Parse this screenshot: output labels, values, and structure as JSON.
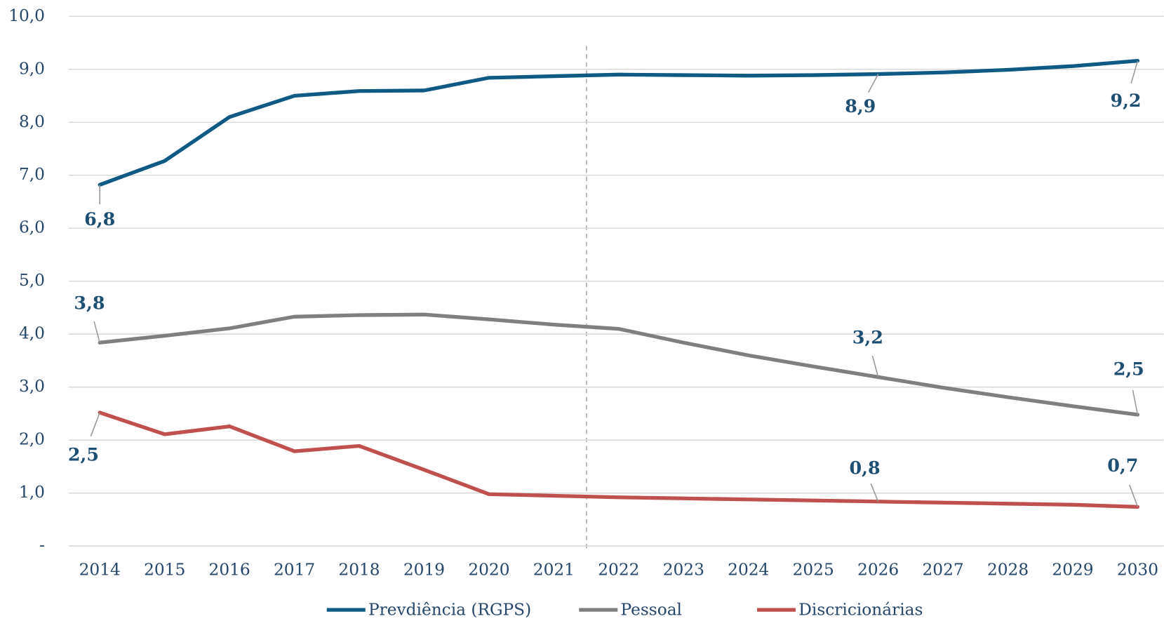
{
  "chart_data": {
    "type": "line",
    "categories": [
      "2014",
      "2015",
      "2016",
      "2017",
      "2018",
      "2019",
      "2020",
      "2021",
      "2022",
      "2023",
      "2024",
      "2025",
      "2026",
      "2027",
      "2028",
      "2029",
      "2030"
    ],
    "series": [
      {
        "name": "Prevdiência (RGPS)",
        "color": "#0e5a84",
        "values": [
          6.82,
          7.27,
          8.1,
          8.5,
          8.59,
          8.6,
          8.84,
          8.87,
          8.9,
          8.89,
          8.88,
          8.89,
          8.91,
          8.94,
          8.99,
          9.06,
          9.16
        ],
        "value_labels": [
          "6,8",
          null,
          null,
          null,
          null,
          null,
          null,
          null,
          null,
          null,
          null,
          null,
          "8,9",
          null,
          null,
          null,
          "9,2"
        ]
      },
      {
        "name": "Pessoal",
        "color": "#7f7f7f",
        "values": [
          3.84,
          3.97,
          4.11,
          4.33,
          4.36,
          4.37,
          4.28,
          4.18,
          4.1,
          3.84,
          3.6,
          3.39,
          3.19,
          2.99,
          2.81,
          2.64,
          2.48
        ],
        "value_labels": [
          "3,8",
          null,
          null,
          null,
          null,
          null,
          null,
          null,
          null,
          null,
          null,
          null,
          "3,2",
          null,
          null,
          null,
          "2,5"
        ]
      },
      {
        "name": "Discricionárias",
        "color": "#c0504d",
        "values": [
          2.52,
          2.11,
          2.26,
          1.79,
          1.89,
          1.44,
          0.98,
          0.95,
          0.92,
          0.9,
          0.88,
          0.86,
          0.84,
          0.82,
          0.8,
          0.78,
          0.74
        ],
        "value_labels": [
          "2,5",
          null,
          null,
          null,
          null,
          null,
          null,
          null,
          null,
          null,
          null,
          null,
          "0,8",
          null,
          null,
          null,
          "0,7"
        ]
      }
    ],
    "ylim": [
      0,
      10
    ],
    "yticks": [
      {
        "value": 0,
        "label": "-"
      },
      {
        "value": 1,
        "label": "1,0"
      },
      {
        "value": 2,
        "label": "2,0"
      },
      {
        "value": 3,
        "label": "3,0"
      },
      {
        "value": 4,
        "label": "4,0"
      },
      {
        "value": 5,
        "label": "5,0"
      },
      {
        "value": 6,
        "label": "6,0"
      },
      {
        "value": 7,
        "label": "7,0"
      },
      {
        "value": 8,
        "label": "8,0"
      },
      {
        "value": 9,
        "label": "9,0"
      },
      {
        "value": 10,
        "label": "10,0"
      }
    ],
    "grid": true,
    "legend": "bottom"
  }
}
